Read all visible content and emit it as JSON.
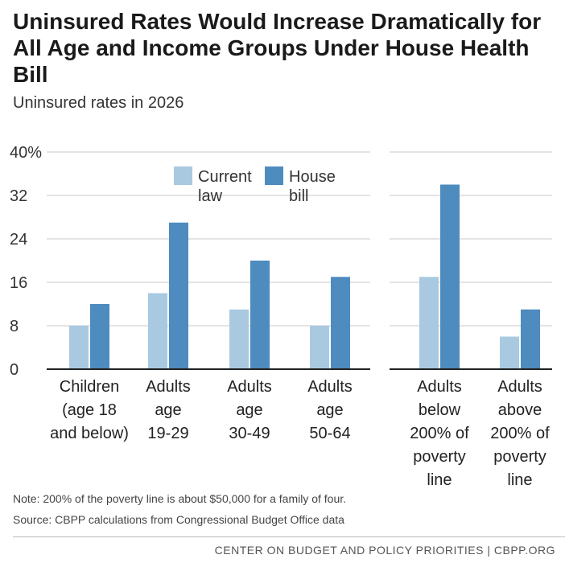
{
  "title": "Uninsured Rates Would Increase Dramatically for All Age and Income Groups Under House Health Bill",
  "subtitle": "Uninsured rates in 2026",
  "note": "Note: 200% of the poverty line is about $50,000 for a family of four.",
  "source": "Source: CBPP calculations from Congressional Budget Office data",
  "footer": "CENTER ON BUDGET AND POLICY PRIORITIES | CBPP.ORG",
  "colors": {
    "current": "#a9c9e1",
    "house": "#4e8bbf",
    "grid": "#c8c8c8",
    "axis": "#222222"
  },
  "chart_data": [
    {
      "type": "bar",
      "title": "Uninsured rates in 2026",
      "group": "age",
      "categories": [
        [
          "Children",
          "(age 18",
          "and below)"
        ],
        [
          "Adults",
          "age",
          "19-29"
        ],
        [
          "Adults",
          "age",
          "30-49"
        ],
        [
          "Adults",
          "age",
          "50-64"
        ]
      ],
      "series": [
        {
          "name": "Current law",
          "legend_lines": [
            "Current",
            "law"
          ],
          "values": [
            8,
            14,
            11,
            8
          ]
        },
        {
          "name": "House bill",
          "legend_lines": [
            "House",
            "bill"
          ],
          "values": [
            12,
            27,
            20,
            17
          ]
        }
      ],
      "yticks": [
        "40%",
        "32",
        "24",
        "16",
        "8",
        "0"
      ],
      "ylim": [
        0,
        40
      ],
      "legend": "top-right"
    },
    {
      "type": "bar",
      "group": "income",
      "categories": [
        [
          "Adults",
          "below",
          "200% of",
          "poverty",
          "line"
        ],
        [
          "Adults",
          "above",
          "200% of",
          "poverty",
          "line"
        ]
      ],
      "series": [
        {
          "name": "Current law",
          "values": [
            17,
            6
          ]
        },
        {
          "name": "House bill",
          "values": [
            34,
            11
          ]
        }
      ],
      "ylim": [
        0,
        40
      ]
    }
  ]
}
